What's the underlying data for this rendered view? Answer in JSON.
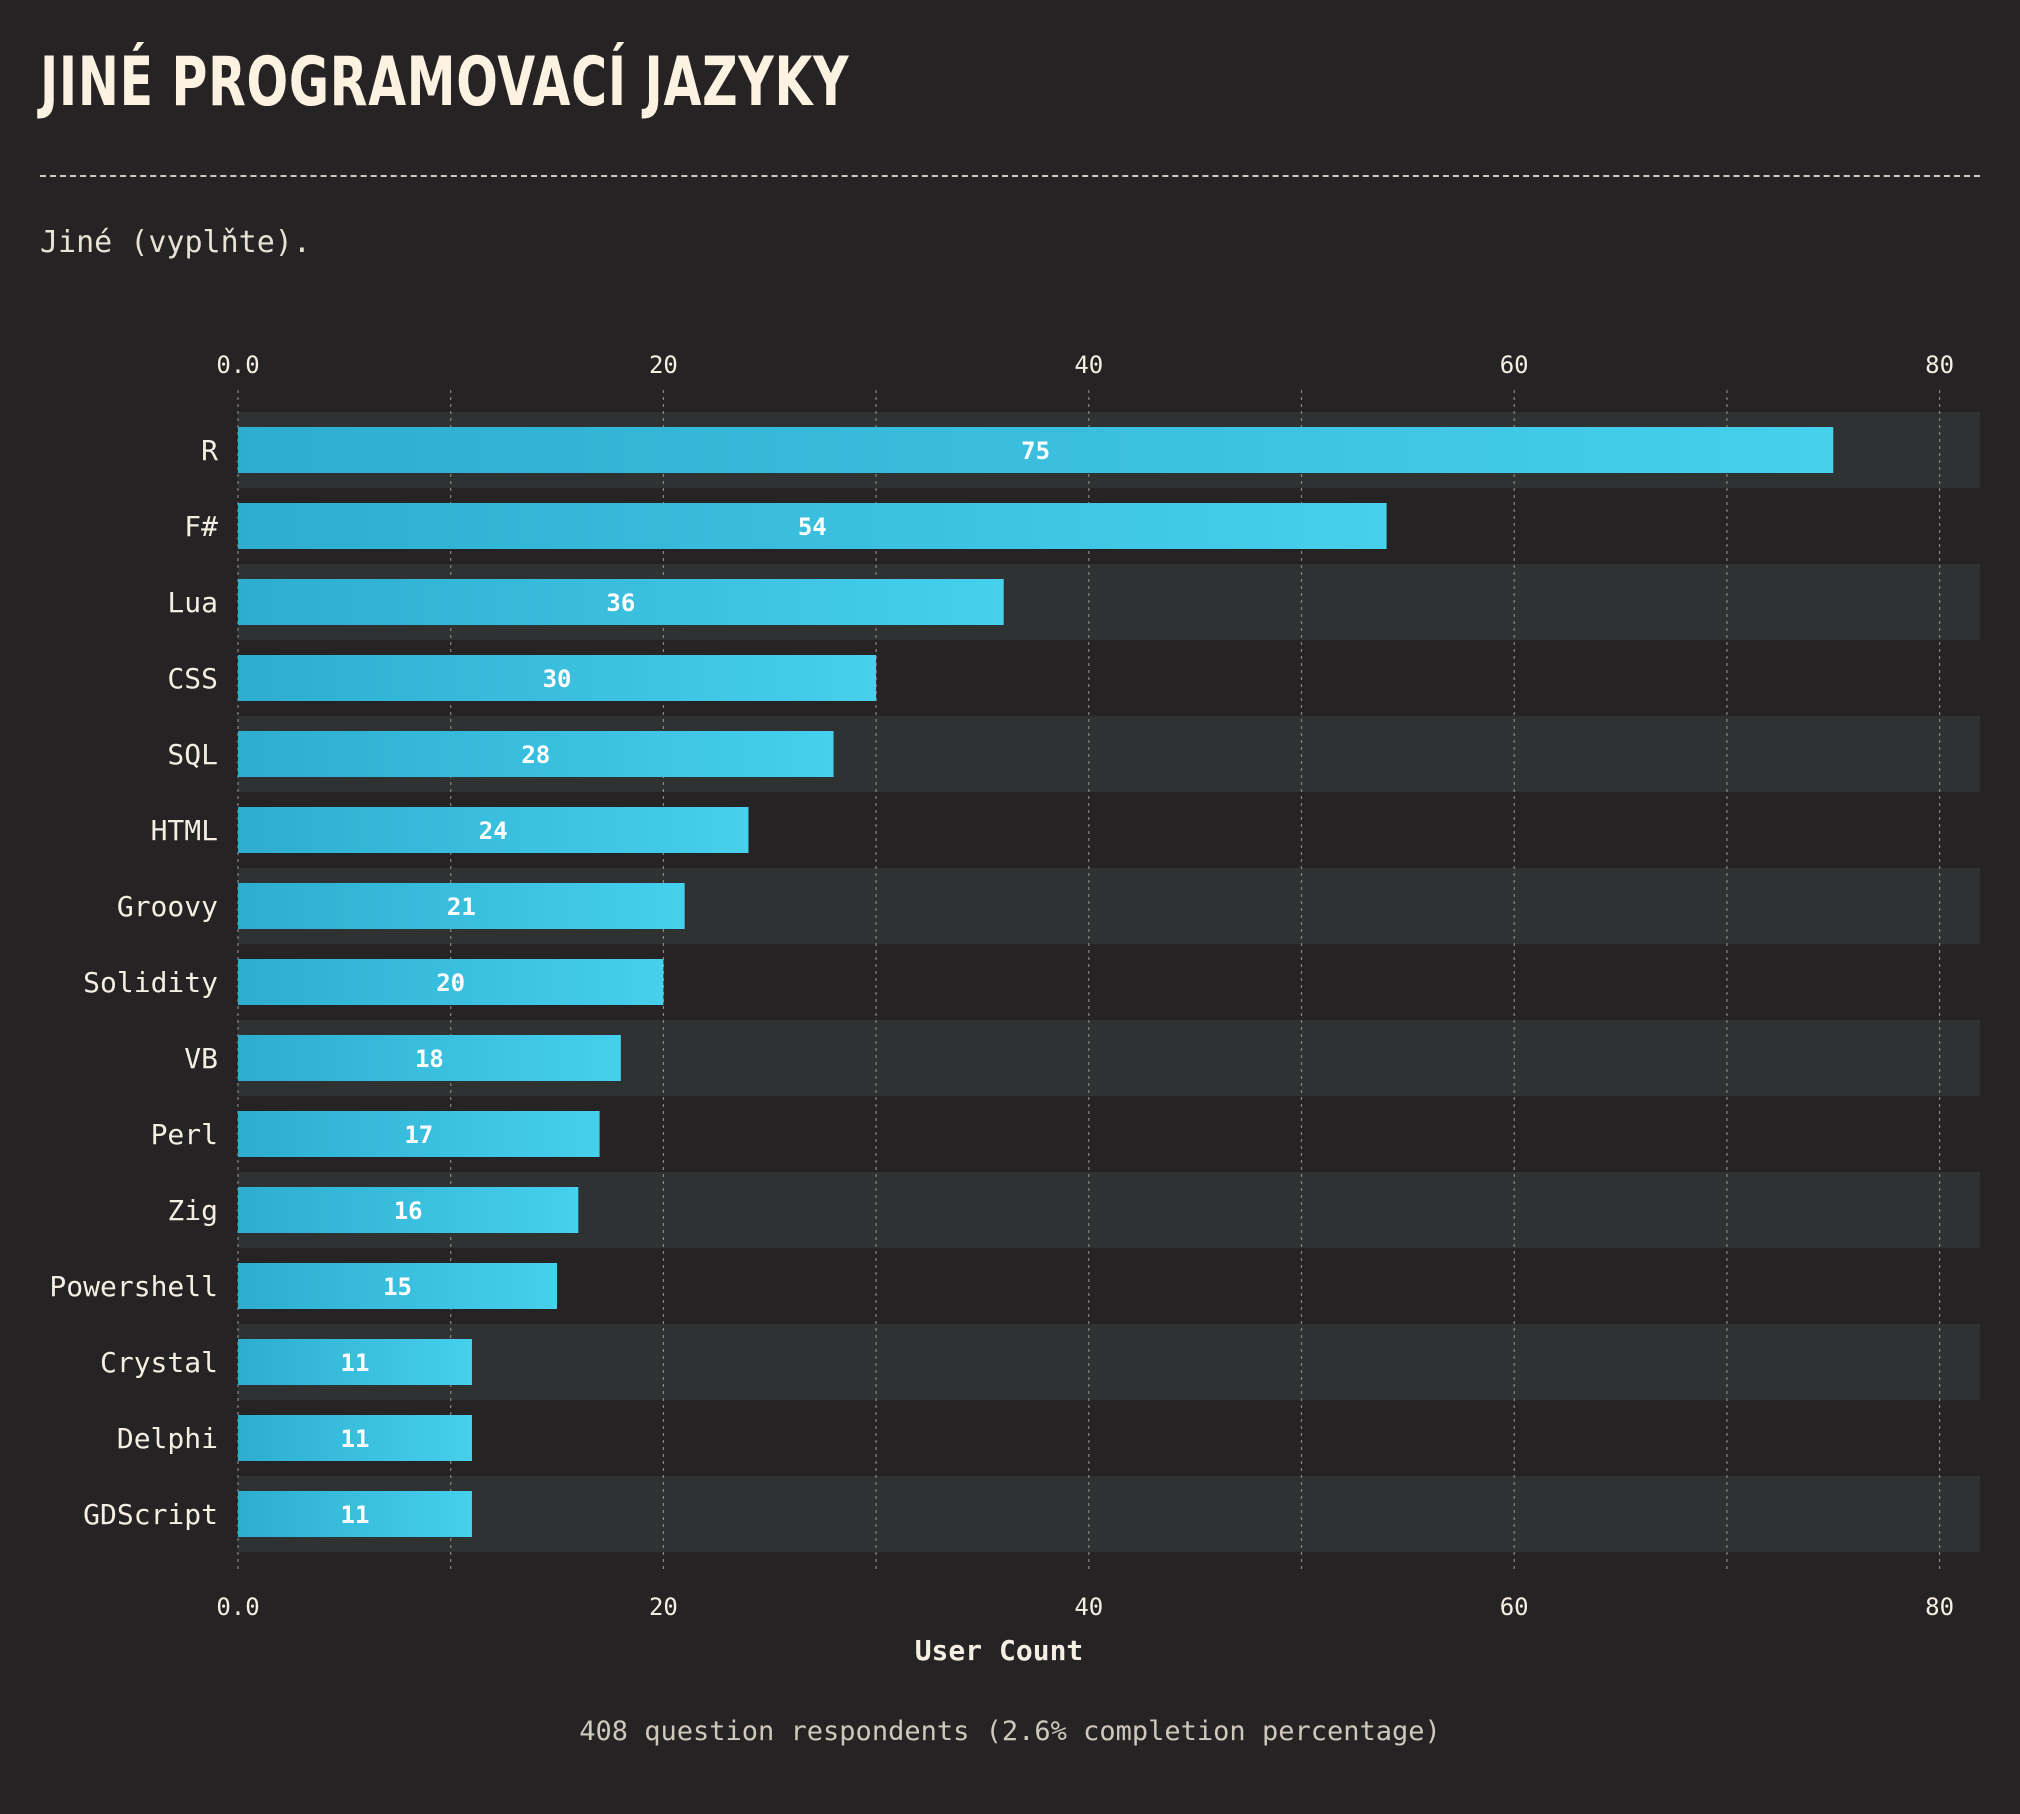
{
  "header": {
    "title": "JINÉ PROGRAMOVACÍ JAZYKY",
    "subtitle": "Jiné (vyplňte)."
  },
  "footer": {
    "note": "408 question respondents (2.6% completion percentage)"
  },
  "colors": {
    "background": "#262324",
    "band": "#2f3233",
    "bar_start": "#2eadd0",
    "bar_end": "#45d0ec",
    "text": "#f5efe3",
    "grid": "#8a8580"
  },
  "chart_data": {
    "type": "bar",
    "orientation": "horizontal",
    "categories": [
      "R",
      "F#",
      "Lua",
      "CSS",
      "SQL",
      "HTML",
      "Groovy",
      "Solidity",
      "VB",
      "Perl",
      "Zig",
      "Powershell",
      "Crystal",
      "Delphi",
      "GDScript"
    ],
    "values": [
      75,
      54,
      36,
      30,
      28,
      24,
      21,
      20,
      18,
      17,
      16,
      15,
      11,
      11,
      11
    ],
    "xlabel": "User Count",
    "ylabel": "",
    "xlim": [
      0,
      82
    ],
    "xticks": [
      0,
      20,
      40,
      60,
      80
    ],
    "xtick_labels": [
      "0.0",
      "20",
      "40",
      "60",
      "80"
    ],
    "minor_grid": [
      10,
      30,
      50,
      70
    ],
    "data_labels": true,
    "grid": true,
    "axis_position": "top and bottom"
  }
}
